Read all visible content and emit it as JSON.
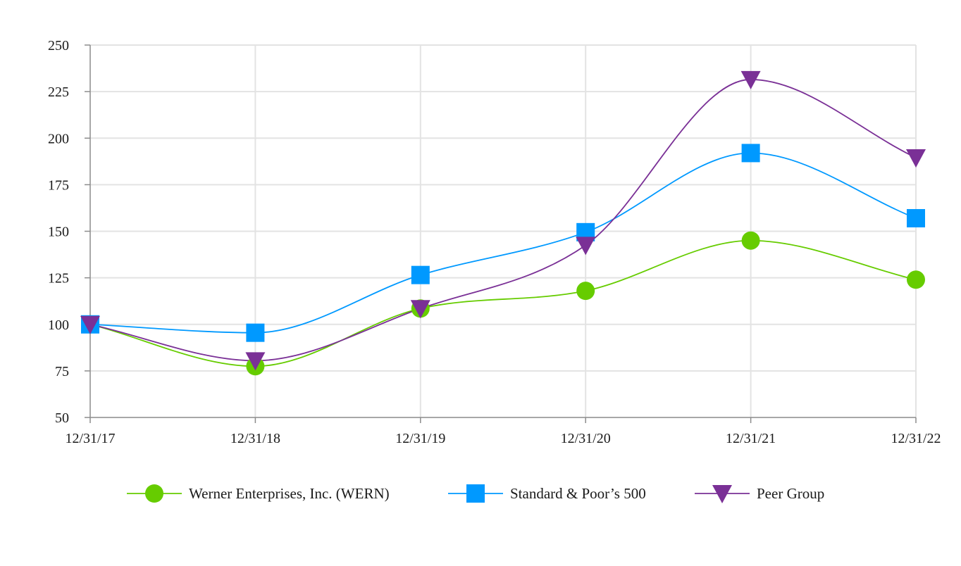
{
  "chart_data": {
    "type": "line",
    "title": "",
    "xlabel": "",
    "ylabel": "",
    "categories": [
      "12/31/17",
      "12/31/18",
      "12/31/19",
      "12/31/20",
      "12/31/21",
      "12/31/22"
    ],
    "ylim": [
      50,
      250
    ],
    "yticks": [
      50,
      75,
      100,
      125,
      150,
      175,
      200,
      225,
      250
    ],
    "grid": true,
    "smooth": true,
    "legend": "bottom",
    "series": [
      {
        "name": "Werner Enterprises, Inc. (WERN)",
        "values": [
          100,
          77.5,
          108.5,
          118,
          145,
          124
        ],
        "color": "#66cc00",
        "marker": "circle"
      },
      {
        "name": "Standard & Poor’s 500",
        "values": [
          100,
          95.5,
          126.5,
          149.5,
          192,
          157
        ],
        "color": "#0099ff",
        "marker": "square"
      },
      {
        "name": "Peer Group",
        "values": [
          100,
          80.5,
          108.5,
          142.5,
          231.5,
          189.5
        ],
        "color": "#7a3096",
        "marker": "triangle-down"
      }
    ]
  }
}
